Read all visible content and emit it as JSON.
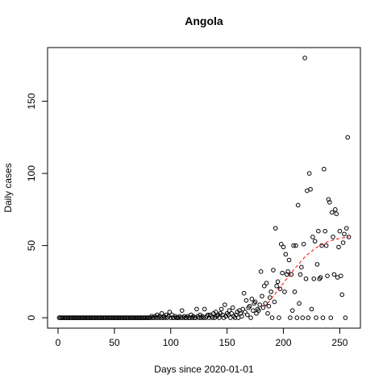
{
  "chart_data": {
    "type": "scatter",
    "title": "Angola",
    "xlabel": "Days since 2020-01-01",
    "ylabel": "Daily cases",
    "xlim": [
      -9.3,
      268.3
    ],
    "ylim": [
      -7.2,
      187.2
    ],
    "xticks": [
      0,
      50,
      100,
      150,
      200,
      250
    ],
    "yticks": [
      0,
      50,
      100,
      150
    ],
    "color": "#000000",
    "x": [
      1,
      2,
      3,
      4,
      5,
      6,
      7,
      8,
      9,
      10,
      11,
      12,
      13,
      14,
      15,
      16,
      17,
      18,
      19,
      20,
      21,
      22,
      23,
      24,
      25,
      26,
      27,
      28,
      29,
      30,
      31,
      32,
      33,
      34,
      35,
      36,
      37,
      38,
      39,
      40,
      41,
      42,
      43,
      44,
      45,
      46,
      47,
      48,
      49,
      50,
      51,
      52,
      53,
      54,
      55,
      56,
      57,
      58,
      59,
      60,
      61,
      62,
      63,
      64,
      65,
      66,
      67,
      68,
      69,
      70,
      71,
      72,
      73,
      74,
      75,
      76,
      77,
      78,
      79,
      80,
      81,
      82,
      83,
      84,
      85,
      86,
      87,
      88,
      89,
      90,
      91,
      92,
      93,
      94,
      95,
      96,
      97,
      98,
      99,
      100,
      101,
      102,
      103,
      104,
      105,
      106,
      107,
      108,
      109,
      110,
      111,
      112,
      113,
      114,
      115,
      116,
      117,
      118,
      119,
      120,
      121,
      122,
      123,
      124,
      125,
      126,
      127,
      128,
      129,
      130,
      131,
      132,
      133,
      134,
      135,
      136,
      137,
      138,
      139,
      140,
      141,
      142,
      143,
      144,
      145,
      146,
      147,
      148,
      149,
      150,
      151,
      152,
      153,
      154,
      155,
      156,
      157,
      158,
      159,
      160,
      161,
      162,
      163,
      164,
      165,
      166,
      167,
      168,
      169,
      170,
      171,
      172,
      173,
      174,
      175,
      176,
      177,
      178,
      179,
      180,
      181,
      182,
      183,
      184,
      185,
      186,
      187,
      188,
      189,
      190,
      191,
      192,
      193,
      194,
      195,
      196,
      197,
      198,
      199,
      200,
      201,
      202,
      203,
      204,
      205,
      206,
      207,
      208,
      209,
      210,
      211,
      212,
      213,
      214,
      215,
      216,
      217,
      218,
      219,
      220,
      221,
      222,
      223,
      224,
      225,
      226,
      227,
      228,
      229,
      230,
      231,
      232,
      233,
      234,
      235,
      236,
      237,
      238,
      239,
      240,
      241,
      242,
      243,
      244,
      245,
      246,
      247,
      248,
      249,
      250,
      251,
      252,
      253,
      254,
      255,
      256,
      257,
      258
    ],
    "values": [
      0,
      0,
      0,
      0,
      0,
      0,
      0,
      0,
      0,
      0,
      0,
      0,
      0,
      0,
      0,
      0,
      0,
      0,
      0,
      0,
      0,
      0,
      0,
      0,
      0,
      0,
      0,
      0,
      0,
      0,
      0,
      0,
      0,
      0,
      0,
      0,
      0,
      0,
      0,
      0,
      0,
      0,
      0,
      0,
      0,
      0,
      0,
      0,
      0,
      0,
      0,
      0,
      0,
      0,
      0,
      0,
      0,
      0,
      0,
      0,
      0,
      0,
      0,
      0,
      0,
      0,
      0,
      0,
      0,
      0,
      0,
      0,
      0,
      0,
      0,
      0,
      0,
      0,
      0,
      0,
      0,
      0,
      1,
      0,
      0,
      1,
      0,
      2,
      0,
      1,
      0,
      3,
      0,
      1,
      0,
      2,
      0,
      1,
      4,
      0,
      2,
      0,
      0,
      1,
      0,
      0,
      0,
      1,
      0,
      5,
      0,
      1,
      0,
      0,
      1,
      0,
      0,
      2,
      0,
      1,
      0,
      0,
      6,
      1,
      0,
      2,
      0,
      1,
      0,
      6,
      0,
      1,
      2,
      0,
      2,
      1,
      0,
      3,
      0,
      4,
      1,
      2,
      0,
      3,
      6,
      2,
      0,
      9,
      1,
      3,
      2,
      5,
      0,
      3,
      7,
      1,
      0,
      2,
      4,
      0,
      5,
      3,
      1,
      6,
      17,
      4,
      12,
      2,
      7,
      8,
      0,
      13,
      5,
      10,
      11,
      3,
      6,
      5,
      9,
      32,
      15,
      7,
      22,
      10,
      24,
      3,
      8,
      14,
      18,
      0,
      33,
      11,
      62,
      22,
      25,
      0,
      20,
      51,
      31,
      49,
      18,
      44,
      30,
      32,
      40,
      0,
      30,
      5,
      50,
      18,
      50,
      0,
      78,
      10,
      30,
      35,
      0,
      51,
      180,
      27,
      88,
      0,
      100,
      89,
      6,
      56,
      27,
      53,
      0,
      37,
      60,
      27,
      28,
      50,
      0,
      103,
      60,
      50,
      29,
      82,
      80,
      0,
      73,
      56,
      30,
      75,
      72,
      28,
      49,
      60,
      29,
      16,
      52,
      58,
      0,
      62,
      125,
      56
    ],
    "trend": {
      "color": "#ff0000",
      "x": [
        183,
        190,
        200,
        210,
        220,
        230,
        240,
        250,
        258
      ],
      "values": [
        7,
        14,
        24,
        34,
        43,
        49,
        53,
        55,
        56
      ]
    }
  }
}
